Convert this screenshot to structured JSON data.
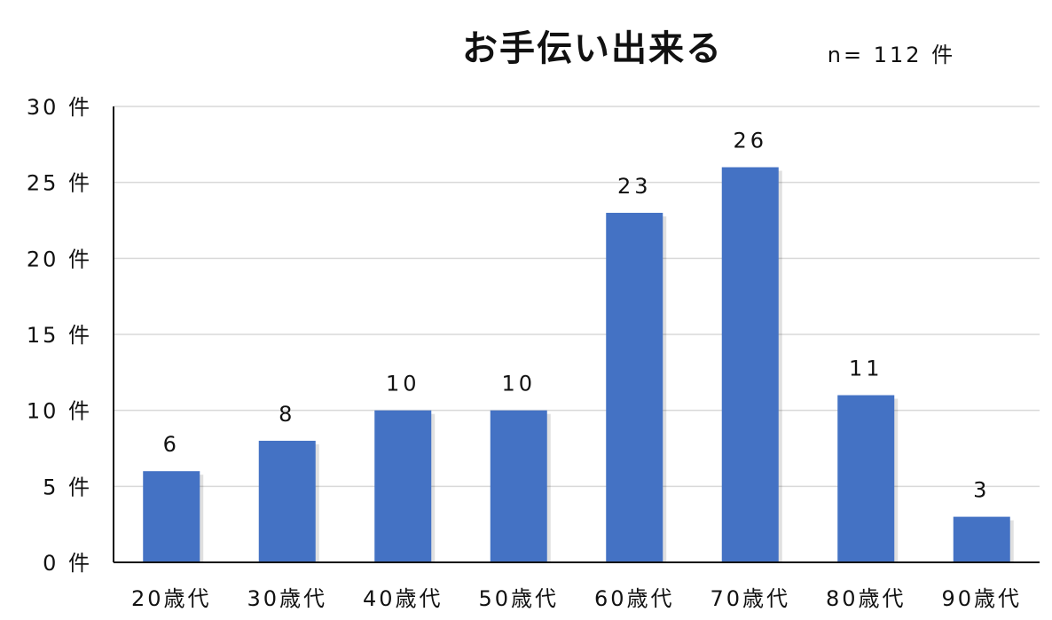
{
  "chart_data": {
    "type": "bar",
    "title": "お手伝い出来る",
    "note": "n= 112 件",
    "categories": [
      "20歳代",
      "30歳代",
      "40歳代",
      "50歳代",
      "60歳代",
      "70歳代",
      "80歳代",
      "90歳代"
    ],
    "values": [
      6,
      8,
      10,
      10,
      23,
      26,
      11,
      3
    ],
    "data_labels": [
      "6",
      "8",
      "10",
      "10",
      "23",
      "26",
      "11",
      "3"
    ],
    "ylim": [
      0,
      30
    ],
    "yticks": [
      0,
      5,
      10,
      15,
      20,
      25,
      30
    ],
    "ytick_labels": [
      "0 件",
      "5 件",
      "10 件",
      "15 件",
      "20 件",
      "25 件",
      "30 件"
    ],
    "bar_color": "#4472c4",
    "grid": true,
    "legend": "none"
  }
}
